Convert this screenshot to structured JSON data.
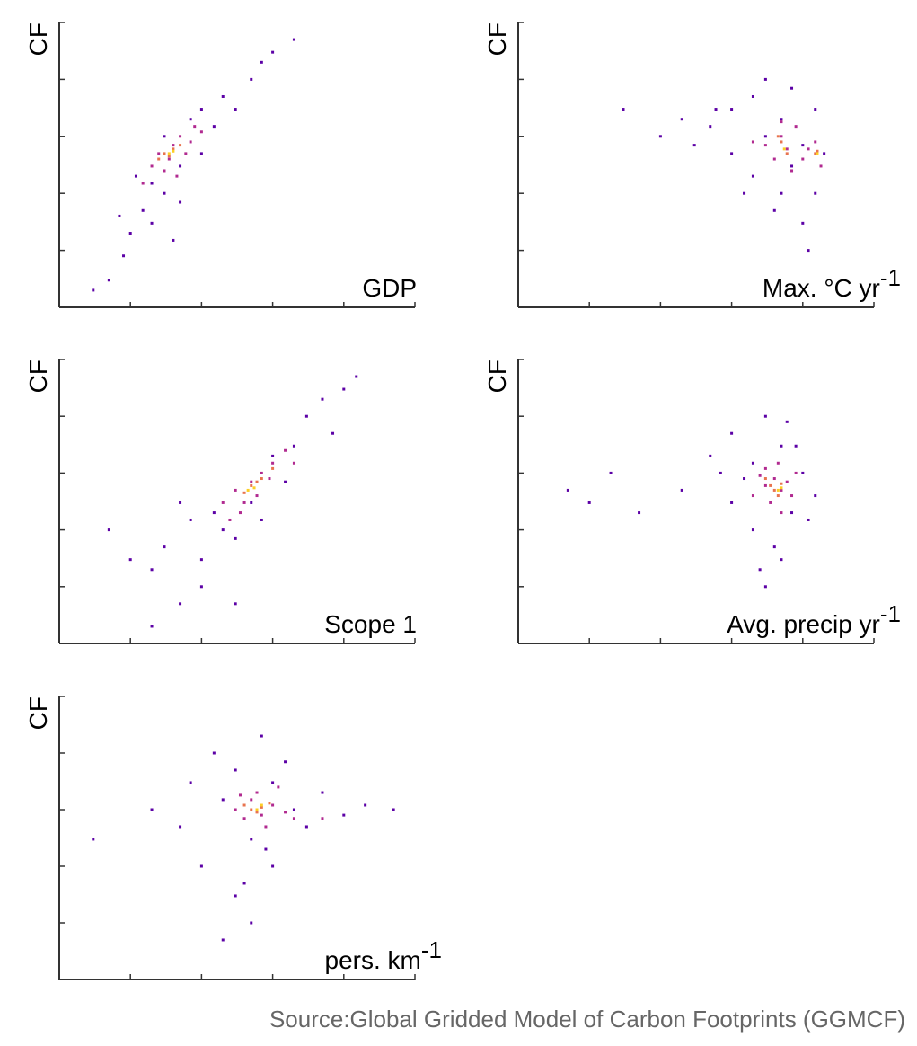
{
  "chart_data": [
    {
      "type": "scatter",
      "ylabel": "CF",
      "xlabel": "GDP",
      "log_x": true,
      "log_y": true,
      "tick_labels": false,
      "xlim": [
        1,
        100000
      ],
      "ylim": [
        1,
        100000
      ],
      "xticks": [
        1,
        10,
        100,
        1000,
        10000,
        100000
      ],
      "yticks": [
        1,
        10,
        100,
        1000,
        10000,
        100000
      ],
      "series": [
        {
          "color": "#5c01a6",
          "x": [
            5,
            8,
            10,
            15,
            20,
            20,
            30,
            30,
            50,
            50,
            70,
            100,
            100,
            150,
            200,
            300,
            500,
            700,
            1000,
            2000,
            12,
            7,
            40,
            3
          ],
          "y": [
            3,
            8,
            20,
            50,
            30,
            150,
            100,
            1000,
            300,
            70,
            2000,
            500,
            3000,
            1500,
            5000,
            3000,
            10000,
            20000,
            30000,
            50000,
            200,
            40,
            15,
            2
          ]
        },
        {
          "color": "#b12a90",
          "x": [
            20,
            25,
            30,
            40,
            50,
            60,
            15,
            80,
            35,
            45,
            100,
            70
          ],
          "y": [
            300,
            500,
            250,
            700,
            1000,
            500,
            150,
            1500,
            400,
            200,
            1200,
            800
          ]
        },
        {
          "color": "#e8744f",
          "x": [
            30,
            40,
            35,
            50,
            25
          ],
          "y": [
            500,
            600,
            450,
            700,
            400
          ]
        },
        {
          "color": "#fcce25",
          "x": [
            35,
            40
          ],
          "y": [
            500,
            550
          ]
        }
      ]
    },
    {
      "type": "scatter",
      "ylabel": "CF",
      "xlabel": "Max. °C yr",
      "xlabel_sup": "-1",
      "log_x": true,
      "log_y": true,
      "tick_labels": false,
      "xlim": [
        1,
        100000
      ],
      "ylim": [
        1,
        100000
      ],
      "xticks": [
        1,
        10,
        100,
        1000,
        10000,
        100000
      ],
      "yticks": [
        1,
        10,
        100,
        1000,
        10000,
        100000
      ],
      "series": [
        {
          "color": "#5c01a6",
          "x": [
            30,
            100,
            200,
            500,
            1000,
            1000,
            2000,
            2000,
            3000,
            3000,
            5000,
            5000,
            7000,
            10000,
            10000,
            15000,
            15000,
            20000,
            7000,
            300,
            1500,
            4000,
            12000,
            600
          ],
          "y": [
            3000,
            1000,
            2000,
            1500,
            3000,
            500,
            5000,
            200,
            1000,
            10000,
            100,
            2000,
            300,
            700,
            30,
            100,
            3000,
            500,
            7000,
            700,
            100,
            50,
            10,
            3000
          ]
        },
        {
          "color": "#b12a90",
          "x": [
            3000,
            5000,
            4000,
            6000,
            10000,
            15000,
            18000,
            2000,
            8000,
            12000,
            7000,
            5000
          ],
          "y": [
            700,
            1000,
            400,
            600,
            400,
            800,
            300,
            800,
            1500,
            600,
            250,
            1800
          ]
        },
        {
          "color": "#e8744f",
          "x": [
            5000,
            6000,
            15000,
            16000,
            4500
          ],
          "y": [
            800,
            500,
            500,
            550,
            1000
          ]
        },
        {
          "color": "#fcce25",
          "x": [
            5500,
            16000
          ],
          "y": [
            600,
            500
          ]
        }
      ]
    },
    {
      "type": "scatter",
      "ylabel": "CF",
      "xlabel": "Scope 1",
      "log_x": true,
      "log_y": true,
      "tick_labels": false,
      "xlim": [
        1,
        100000
      ],
      "ylim": [
        1,
        100000
      ],
      "xticks": [
        1,
        10,
        100,
        1000,
        10000,
        100000
      ],
      "yticks": [
        1,
        10,
        100,
        1000,
        10000,
        100000
      ],
      "series": [
        {
          "color": "#5c01a6",
          "x": [
            5,
            10,
            20,
            30,
            50,
            70,
            100,
            100,
            150,
            200,
            300,
            500,
            1000,
            2000,
            3000,
            5000,
            7000,
            10000,
            15000,
            700,
            20,
            300,
            50,
            1500
          ],
          "y": [
            100,
            30,
            20,
            50,
            5,
            150,
            30,
            10,
            200,
            100,
            70,
            300,
            2000,
            3000,
            10000,
            20000,
            5000,
            30000,
            50000,
            150,
            2,
            5,
            300,
            700
          ]
        },
        {
          "color": "#b12a90",
          "x": [
            200,
            300,
            400,
            500,
            700,
            1000,
            1500,
            600,
            350,
            900,
            2000,
            250
          ],
          "y": [
            300,
            500,
            300,
            700,
            1000,
            1500,
            2500,
            400,
            200,
            800,
            1500,
            150
          ]
        },
        {
          "color": "#e8744f",
          "x": [
            500,
            600,
            700,
            400,
            1000
          ],
          "y": [
            600,
            700,
            800,
            450,
            1200
          ]
        },
        {
          "color": "#fcce25",
          "x": [
            550,
            450
          ],
          "y": [
            550,
            500
          ]
        }
      ]
    },
    {
      "type": "scatter",
      "ylabel": "CF",
      "xlabel": "Avg. precip yr",
      "xlabel_sup": "-1",
      "log_x": true,
      "log_y": true,
      "tick_labels": false,
      "xlim": [
        1,
        100000
      ],
      "ylim": [
        1,
        100000
      ],
      "xticks": [
        1,
        10,
        100,
        1000,
        10000,
        100000
      ],
      "yticks": [
        1,
        10,
        100,
        1000,
        10000,
        100000
      ],
      "series": [
        {
          "color": "#5c01a6",
          "x": [
            5,
            10,
            20,
            50,
            200,
            500,
            1000,
            1000,
            2000,
            2000,
            3000,
            5000,
            5000,
            7000,
            10000,
            15000,
            3000,
            4000,
            8000,
            1500,
            6000,
            12000,
            700,
            2500
          ],
          "y": [
            500,
            300,
            1000,
            200,
            500,
            2000,
            300,
            5000,
            100,
            1500,
            10000,
            30,
            3000,
            200,
            1000,
            400,
            10,
            50,
            3000,
            800,
            8000,
            150,
            1000,
            20
          ]
        },
        {
          "color": "#b12a90",
          "x": [
            3000,
            4000,
            5000,
            3500,
            2500,
            6000,
            7000,
            4500,
            8000,
            2000,
            5000,
            3000
          ],
          "y": [
            600,
            800,
            500,
            300,
            900,
            700,
            400,
            1500,
            1000,
            400,
            200,
            1200
          ]
        },
        {
          "color": "#e8744f",
          "x": [
            3500,
            4000,
            5000,
            3000,
            4500
          ],
          "y": [
            600,
            500,
            650,
            800,
            400
          ]
        },
        {
          "color": "#fcce25",
          "x": [
            4500,
            5000
          ],
          "y": [
            500,
            550
          ]
        }
      ]
    },
    {
      "type": "scatter",
      "ylabel": "CF",
      "xlabel": "pers. km",
      "xlabel_sup": "-1",
      "log_x": true,
      "log_y": true,
      "tick_labels": false,
      "xlim": [
        1,
        100000
      ],
      "ylim": [
        1,
        100000
      ],
      "xticks": [
        1,
        10,
        100,
        1000,
        10000,
        100000
      ],
      "yticks": [
        1,
        10,
        100,
        1000,
        10000,
        100000
      ],
      "series": [
        {
          "color": "#5c01a6",
          "x": [
            20,
            50,
            70,
            100,
            150,
            200,
            300,
            300,
            500,
            500,
            700,
            1000,
            1000,
            2000,
            3000,
            5000,
            10000,
            20000,
            1500,
            400,
            800,
            50000,
            3,
            200
          ],
          "y": [
            1000,
            500,
            3000,
            100,
            10000,
            1500,
            30,
            5000,
            10,
            300,
            20000,
            100,
            3000,
            1000,
            500,
            2000,
            800,
            1200,
            7000,
            50,
            200,
            1000,
            300,
            5
          ]
        },
        {
          "color": "#b12a90",
          "x": [
            300,
            500,
            700,
            1000,
            400,
            600,
            1500,
            2000,
            800,
            350,
            1200,
            5000
          ],
          "y": [
            1000,
            1500,
            800,
            1200,
            700,
            2000,
            900,
            700,
            500,
            1800,
            2500,
            700
          ]
        },
        {
          "color": "#e8744f",
          "x": [
            500,
            700,
            600,
            900,
            400
          ],
          "y": [
            1000,
            1100,
            900,
            1300,
            1200
          ]
        },
        {
          "color": "#fcce25",
          "x": [
            600,
            700
          ],
          "y": [
            1000,
            1200
          ]
        }
      ]
    }
  ],
  "source": "Source:Global Gridded Model of Carbon Footprints (GGMCF)"
}
